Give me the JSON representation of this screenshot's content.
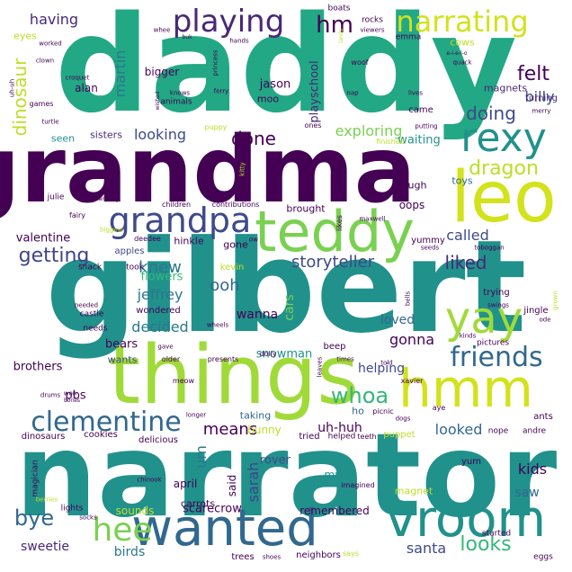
{
  "palette": {
    "dark_purple": "#440154",
    "indigo": "#414487",
    "blue": "#2a788e",
    "teal": "#22a884",
    "green": "#35b779",
    "lime": "#7ad151",
    "yellow_green": "#bddf26",
    "pale_green": "#a0da39"
  },
  "words": [
    {
      "text": "daddy",
      "color": "#22a884"
    },
    {
      "text": "grandma",
      "color": "#440154"
    },
    {
      "text": "gilbert",
      "color": "#21918c"
    },
    {
      "text": "narrator",
      "color": "#21918c"
    },
    {
      "text": "things",
      "color": "#a0da39"
    },
    {
      "text": "leo",
      "color": "#d2e21b"
    },
    {
      "text": "teddy",
      "color": "#7ad151"
    },
    {
      "text": "wanted",
      "color": "#31688e"
    },
    {
      "text": "vroom",
      "color": "#21918c"
    },
    {
      "text": "grandpa",
      "color": "#3e4a89"
    },
    {
      "text": "hmm",
      "color": "#d2e21b"
    },
    {
      "text": "yay",
      "color": "#a0da39"
    },
    {
      "text": "rexy",
      "color": "#21918c"
    },
    {
      "text": "clementine",
      "color": "#31688e"
    },
    {
      "text": "hee",
      "color": "#7ad151"
    },
    {
      "text": "playing",
      "color": "#482878"
    },
    {
      "text": "narrating",
      "color": "#d2e21b"
    },
    {
      "text": "friends",
      "color": "#31688e"
    },
    {
      "text": "whoa",
      "color": "#35b779"
    },
    {
      "text": "dragon",
      "color": "#bddf26"
    },
    {
      "text": "getting",
      "color": "#414487"
    },
    {
      "text": "storyteller",
      "color": "#3e4a89"
    },
    {
      "text": "liked",
      "color": "#482878"
    },
    {
      "text": "looks",
      "color": "#35b779"
    },
    {
      "text": "bye",
      "color": "#31688e"
    },
    {
      "text": "felt",
      "color": "#440154"
    },
    {
      "text": "hm",
      "color": "#440154"
    },
    {
      "text": "doing",
      "color": "#3e4a89"
    },
    {
      "text": "done",
      "color": "#440154"
    },
    {
      "text": "knew",
      "color": "#2a788e"
    },
    {
      "text": "having",
      "color": "#482878"
    },
    {
      "text": "dinosaur",
      "color": "#bddf26"
    },
    {
      "text": "martin",
      "color": "#2a788e"
    },
    {
      "text": "billy",
      "color": "#3e4a89"
    },
    {
      "text": "looking",
      "color": "#3e4a89"
    },
    {
      "text": "exploring",
      "color": "#7ad151"
    },
    {
      "text": "ooh",
      "color": "#31688e"
    },
    {
      "text": "jeffrey",
      "color": "#2a788e"
    },
    {
      "text": "flowers",
      "color": "#35b779"
    },
    {
      "text": "decided",
      "color": "#2a788e"
    },
    {
      "text": "called",
      "color": "#3e4a89"
    },
    {
      "text": "gonna",
      "color": "#440154"
    },
    {
      "text": "loved",
      "color": "#31688e"
    },
    {
      "text": "means",
      "color": "#440154"
    },
    {
      "text": "looked",
      "color": "#31688e"
    },
    {
      "text": "helping",
      "color": "#3e4a89"
    },
    {
      "text": "santa",
      "color": "#3e4a89"
    },
    {
      "text": "kids",
      "color": "#440154"
    },
    {
      "text": "saw",
      "color": "#31688e"
    },
    {
      "text": "sarah",
      "color": "#414487"
    },
    {
      "text": "um",
      "color": "#2a788e"
    },
    {
      "text": "uh-huh",
      "color": "#440154"
    },
    {
      "text": "bunny",
      "color": "#bddf26"
    },
    {
      "text": "snowman",
      "color": "#21918c"
    },
    {
      "text": "cars",
      "color": "#7ad151"
    },
    {
      "text": "wanna",
      "color": "#440154"
    },
    {
      "text": "bears",
      "color": "#440154"
    },
    {
      "text": "wants",
      "color": "#3e4a89"
    },
    {
      "text": "valentine",
      "color": "#440154"
    },
    {
      "text": "brothers",
      "color": "#440154"
    },
    {
      "text": "pbs",
      "color": "#440154"
    },
    {
      "text": "sweetie",
      "color": "#482878"
    },
    {
      "text": "birds",
      "color": "#2a788e"
    },
    {
      "text": "sounds",
      "color": "#bddf26"
    },
    {
      "text": "scarecrow",
      "color": "#440154"
    },
    {
      "text": "remembered",
      "color": "#440154"
    },
    {
      "text": "mmm",
      "color": "#21918c"
    },
    {
      "text": "magnet",
      "color": "#bddf26"
    },
    {
      "text": "rover",
      "color": "#3e4a89"
    },
    {
      "text": "april",
      "color": "#440154"
    },
    {
      "text": "said",
      "color": "#440154"
    },
    {
      "text": "carrots",
      "color": "#440154"
    },
    {
      "text": "playschool",
      "color": "#482878"
    },
    {
      "text": "jason",
      "color": "#440154"
    },
    {
      "text": "moo",
      "color": "#440154"
    },
    {
      "text": "bigger",
      "color": "#440154"
    },
    {
      "text": "alan",
      "color": "#440154"
    },
    {
      "text": "magnets",
      "color": "#482878"
    },
    {
      "text": "turning",
      "color": "#482878"
    },
    {
      "text": "waiting",
      "color": "#21918c"
    },
    {
      "text": "came",
      "color": "#440154"
    },
    {
      "text": "hinkle",
      "color": "#440154"
    },
    {
      "text": "apples",
      "color": "#3e4a89"
    },
    {
      "text": "kevin",
      "color": "#bddf26"
    },
    {
      "text": "gone",
      "color": "#440154"
    },
    {
      "text": "ho",
      "color": "#31688e"
    },
    {
      "text": "oops",
      "color": "#440154"
    },
    {
      "text": "brought",
      "color": "#440154"
    },
    {
      "text": "yummy",
      "color": "#440154"
    },
    {
      "text": "toys",
      "color": "#31688e"
    },
    {
      "text": "ugh",
      "color": "#440154"
    },
    {
      "text": "eyes",
      "color": "#bddf26"
    },
    {
      "text": "cows",
      "color": "#bddf26"
    },
    {
      "text": "seen",
      "color": "#21918c"
    },
    {
      "text": "sisters",
      "color": "#482878"
    },
    {
      "text": "rocks",
      "color": "#440154"
    },
    {
      "text": "emma",
      "color": "#440154"
    },
    {
      "text": "boats",
      "color": "#440154"
    },
    {
      "text": "taking",
      "color": "#31688e"
    },
    {
      "text": "ants",
      "color": "#440154"
    },
    {
      "text": "trying",
      "color": "#440154"
    },
    {
      "text": "jingle",
      "color": "#440154"
    },
    {
      "text": "pictures",
      "color": "#440154"
    },
    {
      "text": "beep",
      "color": "#440154"
    },
    {
      "text": "cookies",
      "color": "#440154"
    },
    {
      "text": "dinosaurs",
      "color": "#440154"
    },
    {
      "text": "started",
      "color": "#440154"
    },
    {
      "text": "trees",
      "color": "#440154"
    },
    {
      "text": "neighbors",
      "color": "#440154"
    },
    {
      "text": "yum",
      "color": "#440154"
    },
    {
      "text": "nope",
      "color": "#440154"
    },
    {
      "text": "andre",
      "color": "#440154"
    },
    {
      "text": "tried",
      "color": "#440154"
    },
    {
      "text": "helped",
      "color": "#440154"
    },
    {
      "text": "teeth",
      "color": "#440154"
    },
    {
      "text": "puppet",
      "color": "#bddf26"
    },
    {
      "text": "delicious",
      "color": "#440154"
    },
    {
      "text": "imagined",
      "color": "#440154"
    },
    {
      "text": "lights",
      "color": "#440154"
    },
    {
      "text": "socks",
      "color": "#440154"
    },
    {
      "text": "shoes",
      "color": "#440154"
    },
    {
      "text": "chinook",
      "color": "#440154"
    },
    {
      "text": "magician",
      "color": "#440154"
    },
    {
      "text": "berries",
      "color": "#bddf26"
    },
    {
      "text": "eggs",
      "color": "#440154"
    },
    {
      "text": "says",
      "color": "#bddf26"
    },
    {
      "text": "dogs",
      "color": "#440154"
    },
    {
      "text": "picnic",
      "color": "#440154"
    },
    {
      "text": "aye",
      "color": "#440154"
    },
    {
      "text": "xavier",
      "color": "#440154"
    },
    {
      "text": "told",
      "color": "#440154"
    },
    {
      "text": "times",
      "color": "#440154"
    },
    {
      "text": "leaves",
      "color": "#440154"
    },
    {
      "text": "dolly",
      "color": "#440154"
    },
    {
      "text": "presents",
      "color": "#440154"
    },
    {
      "text": "older",
      "color": "#440154"
    },
    {
      "text": "meow",
      "color": "#440154"
    },
    {
      "text": "gave",
      "color": "#440154"
    },
    {
      "text": "won",
      "color": "#440154"
    },
    {
      "text": "bones",
      "color": "#440154"
    },
    {
      "text": "drums",
      "color": "#440154"
    },
    {
      "text": "longer",
      "color": "#440154"
    },
    {
      "text": "wheels",
      "color": "#440154"
    },
    {
      "text": "wondered",
      "color": "#440154"
    },
    {
      "text": "castle",
      "color": "#440154"
    },
    {
      "text": "needs",
      "color": "#440154"
    },
    {
      "text": "needed",
      "color": "#440154"
    },
    {
      "text": "took",
      "color": "#440154"
    },
    {
      "text": "snack",
      "color": "#440154"
    },
    {
      "text": "ow",
      "color": "#440154"
    },
    {
      "text": "deedee",
      "color": "#440154"
    },
    {
      "text": "biggest",
      "color": "#bddf26"
    },
    {
      "text": "fairy",
      "color": "#440154"
    },
    {
      "text": "children",
      "color": "#440154"
    },
    {
      "text": "contributions",
      "color": "#440154"
    },
    {
      "text": "likes",
      "color": "#440154"
    },
    {
      "text": "maxwell",
      "color": "#440154"
    },
    {
      "text": "seeds",
      "color": "#440154"
    },
    {
      "text": "toboggan",
      "color": "#440154"
    },
    {
      "text": "swings",
      "color": "#440154"
    },
    {
      "text": "grown",
      "color": "#bddf26"
    },
    {
      "text": "kinds",
      "color": "#440154"
    },
    {
      "text": "ode",
      "color": "#440154"
    },
    {
      "text": "bells",
      "color": "#440154"
    },
    {
      "text": "julie",
      "color": "#440154"
    },
    {
      "text": "shh",
      "color": "#440154"
    },
    {
      "text": "marching",
      "color": "#440154"
    },
    {
      "text": "oof",
      "color": "#440154"
    },
    {
      "text": "kitty",
      "color": "#bddf26"
    },
    {
      "text": "ones",
      "color": "#440154"
    },
    {
      "text": "finished",
      "color": "#bddf26"
    },
    {
      "text": "putting",
      "color": "#440154"
    },
    {
      "text": "lives",
      "color": "#440154"
    },
    {
      "text": "nap",
      "color": "#440154"
    },
    {
      "text": "ferry",
      "color": "#440154"
    },
    {
      "text": "knows",
      "color": "#440154"
    },
    {
      "text": "animals",
      "color": "#440154"
    },
    {
      "text": "puppy",
      "color": "#bddf26"
    },
    {
      "text": "turtle",
      "color": "#440154"
    },
    {
      "text": "games",
      "color": "#440154"
    },
    {
      "text": "croquet",
      "color": "#440154"
    },
    {
      "text": "uh-uh",
      "color": "#440154"
    },
    {
      "text": "clown",
      "color": "#440154"
    },
    {
      "text": "worked",
      "color": "#440154"
    },
    {
      "text": "whee",
      "color": "#440154"
    },
    {
      "text": "buk",
      "color": "#440154"
    },
    {
      "text": "princess",
      "color": "#440154"
    },
    {
      "text": "hands",
      "color": "#440154"
    },
    {
      "text": "viewers",
      "color": "#440154"
    },
    {
      "text": "lands",
      "color": "#bddf26"
    },
    {
      "text": "e-i-e-i-o",
      "color": "#440154"
    },
    {
      "text": "woof",
      "color": "#440154"
    },
    {
      "text": "quack",
      "color": "#440154"
    },
    {
      "text": "merry",
      "color": "#440154"
    },
    {
      "text": "wished",
      "color": "#440154"
    }
  ]
}
